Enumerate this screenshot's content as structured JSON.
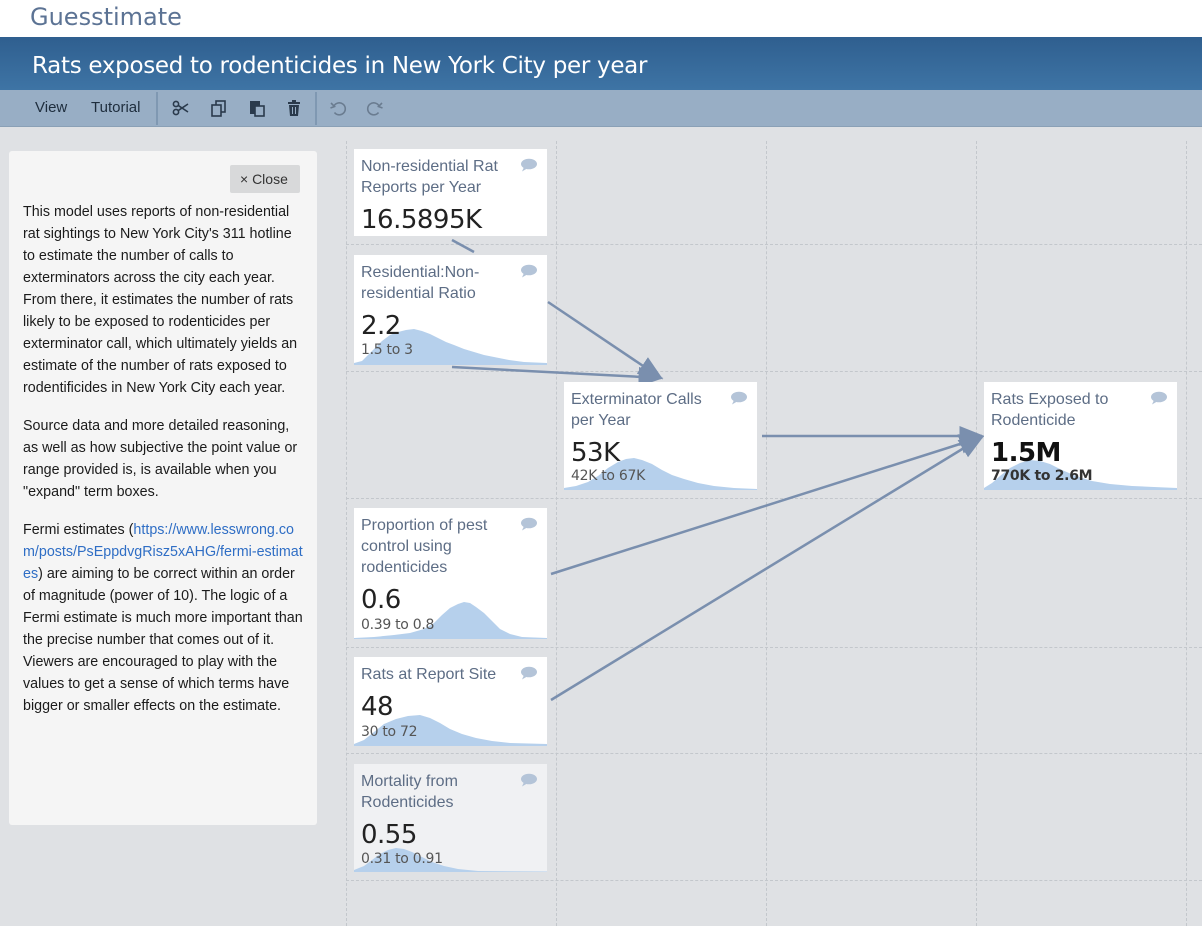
{
  "app": {
    "brand": "Guesstimate"
  },
  "model": {
    "title": "Rats exposed to rodenticides in New York City per year"
  },
  "toolbar": {
    "view_label": "View",
    "tutorial_label": "Tutorial"
  },
  "sidebar": {
    "close_label": "× Close",
    "p1": "This model uses reports of non-residential rat sightings to New York City's 311 hotline to estimate the number of calls to exterminators across the city each year. From there, it estimates the number of rats likely to be exposed to rodenticides per exterminator call, which ultimately yields an estimate of the number of rats exposed to rodentificides in New York City each year.",
    "p2": "Source data and more detailed reasoning, as well as how subjective the point value or range provided is, is available when you \"expand\" term boxes.",
    "p3_before": "Fermi estimates (",
    "p3_link": "https://www.lesswrong.com/posts/PsEppdvgRisz5xAHG/fermi-estimates",
    "p3_after": ") are aiming to be correct within an order of magnitude (power of 10). The logic of a Fermi estimate is much more important than the precise number that comes out of it. Viewers are encouraged to play with the values to get a sense of which terms have bigger or smaller effects on the estimate."
  },
  "metrics": {
    "reports": {
      "name": "Non-residential Rat Reports per Year",
      "value": "16.5895K"
    },
    "ratio": {
      "name": "Residential:Non-residential Ratio",
      "value": "2.2",
      "range": "1.5 to 3"
    },
    "calls": {
      "name": "Exterminator Calls per Year",
      "value": "53K",
      "range": "42K to 67K"
    },
    "exposed": {
      "name": "Rats Exposed to Rodenticide",
      "value": "1.5M",
      "range": "770K to 2.6M"
    },
    "proportion": {
      "name": "Proportion of pest control using rodenticides",
      "value": "0.6",
      "range": "0.39 to 0.8"
    },
    "rats": {
      "name": "Rats at Report Site",
      "value": "48",
      "range": "30 to 72"
    },
    "mortality": {
      "name": "Mortality from Rodenticides",
      "value": "0.55",
      "range": "0.31 to 0.91"
    }
  },
  "colors": {
    "title_bar": "#3a6c9c",
    "toolbar": "#98aec5",
    "edge": "#7a8fae",
    "histogram": "#b6d0ec",
    "metric_name": "#5d6d85"
  }
}
